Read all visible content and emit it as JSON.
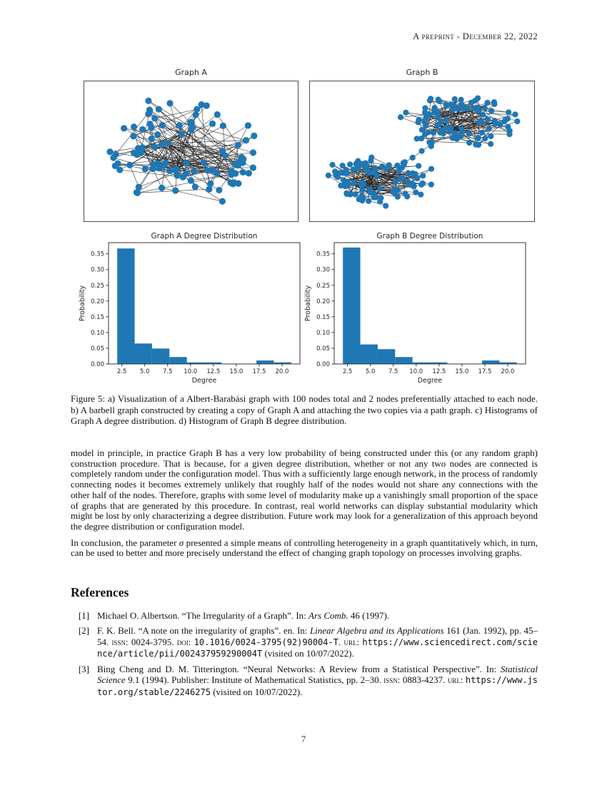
{
  "page": {
    "header": "A preprint - December 22, 2022",
    "page_number": "7"
  },
  "figure": {
    "caption": "Figure 5: a) Visualization of a Albert-Barabási graph with 100 nodes total and 2 nodes preferentially attached to each node. b) A barbell graph constructed by creating a copy of Graph A and attaching the two copies via a path graph. c) Histograms of Graph A degree distribution. d) Histogram of Graph B degree distribution."
  },
  "chart_data": [
    {
      "type": "network",
      "title": "Graph A",
      "layout": "blob",
      "nodes": 100,
      "model": "Albert-Barabási preferential attachment, 2 edges per new node",
      "node_color": "#1f77b4",
      "edge_color": "#262626",
      "seed": 12
    },
    {
      "type": "network",
      "title": "Graph B",
      "layout": "barbell",
      "nodes": 204,
      "model": "two copies of Graph A joined by a path graph",
      "clusters": 2,
      "node_color": "#1f77b4",
      "edge_color": "#262626",
      "seed": 99
    },
    {
      "type": "bar",
      "title": "Graph A Degree Distribution",
      "xlabel": "Degree",
      "ylabel": "Probability",
      "bin_start": 2.0,
      "bin_width": 1.9,
      "values": [
        0.367,
        0.065,
        0.049,
        0.022,
        0.005,
        0.005,
        0,
        0,
        0.011,
        0.005
      ],
      "xticks": [
        2.5,
        5.0,
        7.5,
        10.0,
        12.5,
        15.0,
        17.5,
        20.0
      ],
      "yticks": [
        0.0,
        0.05,
        0.1,
        0.15,
        0.2,
        0.25,
        0.3,
        0.35
      ],
      "xlim": [
        1.05,
        21.95
      ],
      "ylim": [
        0,
        0.3855
      ],
      "bar_color": "#1f77b4",
      "grid": false,
      "legend": null
    },
    {
      "type": "bar",
      "title": "Graph B Degree Distribution",
      "xlabel": "Degree",
      "ylabel": "Probability",
      "bin_start": 2.0,
      "bin_width": 1.9,
      "values": [
        0.37,
        0.062,
        0.047,
        0.022,
        0.005,
        0.005,
        0,
        0,
        0.011,
        0.005
      ],
      "xticks": [
        2.5,
        5.0,
        7.5,
        10.0,
        12.5,
        15.0,
        17.5,
        20.0
      ],
      "yticks": [
        0.0,
        0.05,
        0.1,
        0.15,
        0.2,
        0.25,
        0.3,
        0.35
      ],
      "xlim": [
        1.05,
        21.95
      ],
      "ylim": [
        0,
        0.3855
      ],
      "bar_color": "#1f77b4",
      "grid": false,
      "legend": null
    }
  ],
  "body": {
    "paragraphs": [
      {
        "segments": [
          {
            "t": "model in principle, in practice Graph B has a very low probability of being constructed under this (or any random graph) construction procedure. That is because, for a given degree distribution, whether or not any two nodes are connected is completely random under the configuration model. Thus with a sufficiently large enough network, in the process of randomly connecting nodes it becomes extremely unlikely that roughly half of the nodes would not share any connections with the other half of the nodes. Therefore, graphs with some level of modularity make up a vanishingly small proportion of the space of graphs that are generated by this procedure. In contrast, real world networks can display substantial modularity which might be lost by only characterizing a degree distribution. Future work may look for a generalization of this approach beyond the degree distribution or configuration model.",
            "s": "n"
          }
        ]
      },
      {
        "segments": [
          {
            "t": "In conclusion, the parameter ",
            "s": "n"
          },
          {
            "t": "σ",
            "s": "i"
          },
          {
            "t": " presented a simple means of controlling heterogeneity in a graph quantitatively which, in turn, can be used to better and more precisely understand the effect of changing graph topology on processes involving graphs.",
            "s": "n"
          }
        ]
      }
    ]
  },
  "references": {
    "heading": "References",
    "items": [
      {
        "num": "[1]",
        "segments": [
          {
            "t": "Michael O. Albertson. “The Irregularity of a Graph”. In: ",
            "s": "n"
          },
          {
            "t": "Ars Comb.",
            "s": "i"
          },
          {
            "t": " 46 (1997).",
            "s": "n"
          }
        ]
      },
      {
        "num": "[2]",
        "segments": [
          {
            "t": "F. K. Bell. “A note on the irregularity of graphs”. en. In: ",
            "s": "n"
          },
          {
            "t": "Linear Algebra and its Applications",
            "s": "i"
          },
          {
            "t": " 161 (Jan. 1992), pp. 45–54. ",
            "s": "n"
          },
          {
            "t": "issn",
            "s": "sc"
          },
          {
            "t": ": 0024-3795. ",
            "s": "n"
          },
          {
            "t": "doi",
            "s": "sc"
          },
          {
            "t": ": ",
            "s": "n"
          },
          {
            "t": "10.1016/0024-3795(92)90004-T",
            "s": "link"
          },
          {
            "t": ". ",
            "s": "n"
          },
          {
            "t": "url",
            "s": "sc"
          },
          {
            "t": ": ",
            "s": "n"
          },
          {
            "t": "https://www.sciencedirect.com/science/article/pii/002437959290004T",
            "s": "link"
          },
          {
            "t": " (visited on 10/07/2022).",
            "s": "n"
          }
        ]
      },
      {
        "num": "[3]",
        "segments": [
          {
            "t": "Bing Cheng and D. M. Titterington. “Neural Networks: A Review from a Statistical Perspective”. In: ",
            "s": "n"
          },
          {
            "t": "Statistical Science",
            "s": "i"
          },
          {
            "t": " 9.1 (1994). Publisher: Institute of Mathematical Statistics, pp. 2–30. ",
            "s": "n"
          },
          {
            "t": "issn",
            "s": "sc"
          },
          {
            "t": ": 0883-4237. ",
            "s": "n"
          },
          {
            "t": "url",
            "s": "sc"
          },
          {
            "t": ": ",
            "s": "n"
          },
          {
            "t": "https://www.jstor.org/stable/2246275",
            "s": "link"
          },
          {
            "t": " (visited on 10/07/2022).",
            "s": "n"
          }
        ]
      }
    ]
  }
}
